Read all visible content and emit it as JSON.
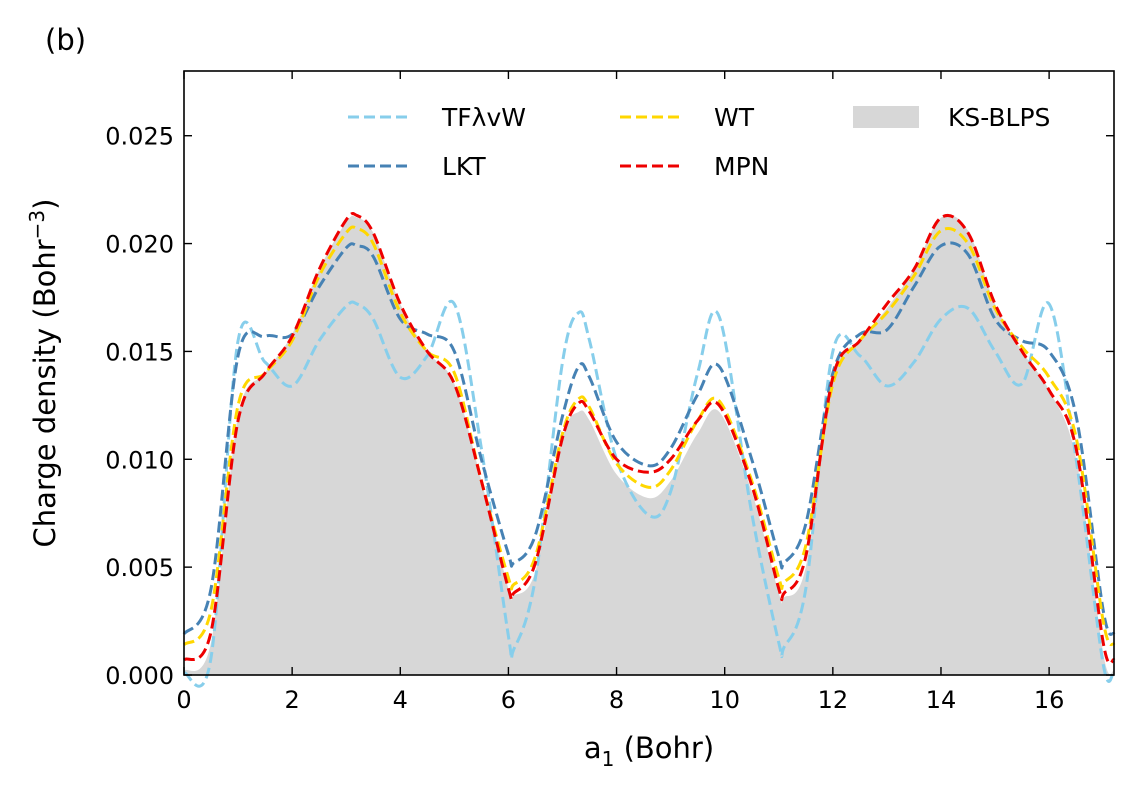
{
  "chart_data": {
    "type": "line",
    "panel_label": "(b)",
    "xlabel_main": "a",
    "xlabel_sub": "1",
    "xlabel_rest": " (Bohr)",
    "ylabel_main": "Charge density (Bohr",
    "ylabel_sup": "−3",
    "ylabel_end": ")",
    "xlim": [
      0,
      17.2
    ],
    "ylim": [
      0,
      0.028
    ],
    "xticks": [
      0,
      2,
      4,
      6,
      8,
      10,
      12,
      14,
      16
    ],
    "yticks": [
      0.0,
      0.005,
      0.01,
      0.015,
      0.02,
      0.025
    ],
    "ytick_labels": [
      "0.000",
      "0.005",
      "0.010",
      "0.015",
      "0.020",
      "0.025"
    ],
    "xtick_labels": [
      "0",
      "2",
      "4",
      "6",
      "8",
      "10",
      "12",
      "14",
      "16"
    ],
    "legend_position": "top",
    "x": [
      0.0,
      0.5,
      1.0,
      1.5,
      2.0,
      2.5,
      3.0,
      3.2,
      3.5,
      4.0,
      4.5,
      5.0,
      5.5,
      6.0,
      6.1,
      6.5,
      7.0,
      7.3,
      7.5,
      8.0,
      8.6,
      9.0,
      9.5,
      9.9,
      10.5,
      11.0,
      11.1,
      11.5,
      12.0,
      12.5,
      13.0,
      13.5,
      14.0,
      14.5,
      15.0,
      15.5,
      16.0,
      16.5,
      17.0,
      17.2
    ],
    "series": [
      {
        "name": "TFλvW",
        "color": "#87CEEB",
        "style": "dashed",
        "values": [
          0.0001,
          0.0008,
          0.0155,
          0.0145,
          0.0134,
          0.0155,
          0.0171,
          0.0172,
          0.0165,
          0.0138,
          0.0148,
          0.0172,
          0.0105,
          0.0018,
          0.0012,
          0.0045,
          0.0145,
          0.0168,
          0.0155,
          0.01,
          0.0074,
          0.0085,
          0.014,
          0.0166,
          0.0075,
          0.0015,
          0.0013,
          0.004,
          0.015,
          0.0148,
          0.0134,
          0.0145,
          0.0165,
          0.017,
          0.015,
          0.0135,
          0.0172,
          0.01,
          0.0005,
          0.0002
        ]
      },
      {
        "name": "LKT",
        "color": "#4682B4",
        "style": "dashed",
        "values": [
          0.0019,
          0.004,
          0.0148,
          0.0157,
          0.0158,
          0.018,
          0.0198,
          0.0199,
          0.0194,
          0.0165,
          0.0158,
          0.015,
          0.01,
          0.0056,
          0.0052,
          0.0065,
          0.012,
          0.0143,
          0.0138,
          0.0108,
          0.0097,
          0.0105,
          0.013,
          0.0143,
          0.01,
          0.0055,
          0.0052,
          0.007,
          0.014,
          0.0158,
          0.016,
          0.018,
          0.0199,
          0.0195,
          0.0165,
          0.0155,
          0.015,
          0.012,
          0.003,
          0.0019
        ]
      },
      {
        "name": "WT",
        "color": "#FFD700",
        "style": "dashed",
        "values": [
          0.0014,
          0.003,
          0.0125,
          0.014,
          0.0155,
          0.0185,
          0.0205,
          0.0207,
          0.02,
          0.0168,
          0.015,
          0.014,
          0.009,
          0.0045,
          0.0042,
          0.0055,
          0.0112,
          0.0128,
          0.0124,
          0.0098,
          0.0087,
          0.0095,
          0.0118,
          0.0127,
          0.009,
          0.0045,
          0.0043,
          0.006,
          0.0135,
          0.0155,
          0.0168,
          0.0185,
          0.0206,
          0.02,
          0.017,
          0.0152,
          0.0138,
          0.011,
          0.0025,
          0.0014
        ]
      },
      {
        "name": "MPN",
        "color": "#EE0000",
        "style": "dashed",
        "values": [
          0.0007,
          0.002,
          0.0118,
          0.014,
          0.0157,
          0.0188,
          0.0211,
          0.0213,
          0.0205,
          0.0172,
          0.015,
          0.0135,
          0.009,
          0.004,
          0.0038,
          0.0052,
          0.011,
          0.0126,
          0.0122,
          0.01,
          0.0094,
          0.01,
          0.0118,
          0.0125,
          0.0088,
          0.004,
          0.0038,
          0.0055,
          0.0138,
          0.0155,
          0.0172,
          0.0188,
          0.0212,
          0.0205,
          0.0172,
          0.015,
          0.0132,
          0.0105,
          0.0015,
          0.0007
        ]
      }
    ],
    "filled_series": {
      "name": "KS-BLPS",
      "color": "#D7D7D7",
      "values": [
        0.0002,
        0.0015,
        0.012,
        0.014,
        0.0158,
        0.0188,
        0.021,
        0.0212,
        0.0205,
        0.0172,
        0.015,
        0.0135,
        0.009,
        0.004,
        0.0037,
        0.0048,
        0.011,
        0.0122,
        0.0118,
        0.0093,
        0.0082,
        0.009,
        0.0112,
        0.0122,
        0.0085,
        0.0038,
        0.0036,
        0.005,
        0.0138,
        0.0155,
        0.017,
        0.0188,
        0.0212,
        0.0206,
        0.0172,
        0.015,
        0.0132,
        0.01,
        0.001,
        0.0002
      ]
    }
  }
}
